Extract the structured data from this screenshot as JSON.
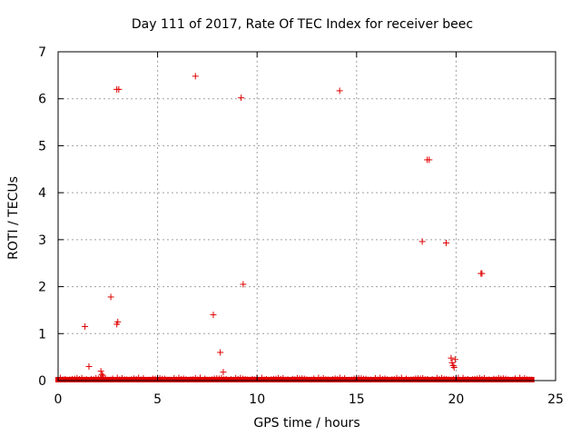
{
  "chart_data": {
    "type": "scatter",
    "title": "Day 111 of 2017, Rate Of TEC Index for receiver beec",
    "xlabel": "GPS time / hours",
    "ylabel": "ROTI / TECUs",
    "xlim": [
      0,
      25
    ],
    "ylim": [
      0,
      7
    ],
    "xticks": [
      0,
      5,
      10,
      15,
      20,
      25
    ],
    "yticks": [
      0,
      1,
      2,
      3,
      4,
      5,
      6,
      7
    ],
    "grid": true,
    "marker": "+",
    "color": "#e00000",
    "baseline": {
      "x_start": 0.0,
      "x_end": 23.8,
      "y": 0.02,
      "description": "dense band of near-zero values"
    },
    "points": [
      [
        1.35,
        1.15
      ],
      [
        1.55,
        0.3
      ],
      [
        2.15,
        0.2
      ],
      [
        2.2,
        0.13
      ],
      [
        2.25,
        0.1
      ],
      [
        2.65,
        1.78
      ],
      [
        2.95,
        1.2
      ],
      [
        3.0,
        1.25
      ],
      [
        2.95,
        6.2
      ],
      [
        3.05,
        6.2
      ],
      [
        6.9,
        6.48
      ],
      [
        7.8,
        1.4
      ],
      [
        8.15,
        0.6
      ],
      [
        8.3,
        0.18
      ],
      [
        9.2,
        6.02
      ],
      [
        9.3,
        2.05
      ],
      [
        14.15,
        6.17
      ],
      [
        18.3,
        2.96
      ],
      [
        18.55,
        4.7
      ],
      [
        18.65,
        4.7
      ],
      [
        19.5,
        2.93
      ],
      [
        19.75,
        0.48
      ],
      [
        19.8,
        0.38
      ],
      [
        19.85,
        0.32
      ],
      [
        19.95,
        0.45
      ],
      [
        19.9,
        0.28
      ],
      [
        21.25,
        2.28
      ],
      [
        21.3,
        2.28
      ]
    ]
  }
}
